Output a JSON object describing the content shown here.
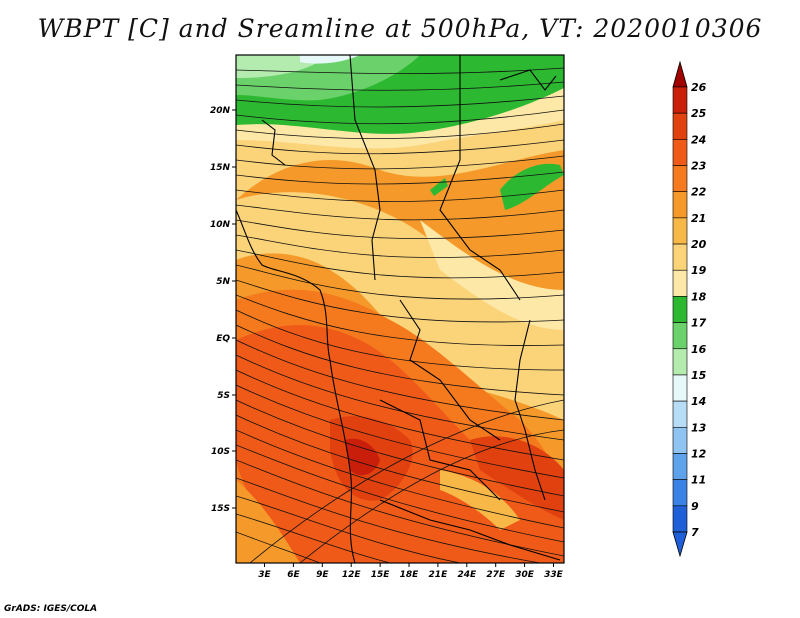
{
  "title": "WBPT [C] and Sreamline at 500hPa, VT: 2020010306",
  "credit": "GrADS: IGES/COLA",
  "map": {
    "lat_ticks": [
      "20N",
      "15N",
      "10N",
      "5N",
      "EQ",
      "5S",
      "10S",
      "15S"
    ],
    "lon_ticks": [
      "3E",
      "6E",
      "9E",
      "12E",
      "15E",
      "18E",
      "21E",
      "24E",
      "27E",
      "30E",
      "33E"
    ],
    "lon_range": [
      0,
      35
    ],
    "lat_range": [
      -20,
      25
    ]
  },
  "colorbar": {
    "levels": [
      "26",
      "25",
      "24",
      "23",
      "22",
      "21",
      "20",
      "19",
      "18",
      "17",
      "16",
      "15",
      "14",
      "13",
      "12",
      "11",
      "9",
      "7"
    ],
    "colors": [
      "#a00000",
      "#c81e0a",
      "#e0410f",
      "#f05a18",
      "#f57a1e",
      "#f59a2a",
      "#f8b848",
      "#fbd47a",
      "#fde8a8",
      "#2db832",
      "#6bd26b",
      "#b4ecb0",
      "#e6f8f8",
      "#b7dcf6",
      "#8ec3f2",
      "#5fa2ec",
      "#3a82e6",
      "#1f5fd8"
    ]
  }
}
